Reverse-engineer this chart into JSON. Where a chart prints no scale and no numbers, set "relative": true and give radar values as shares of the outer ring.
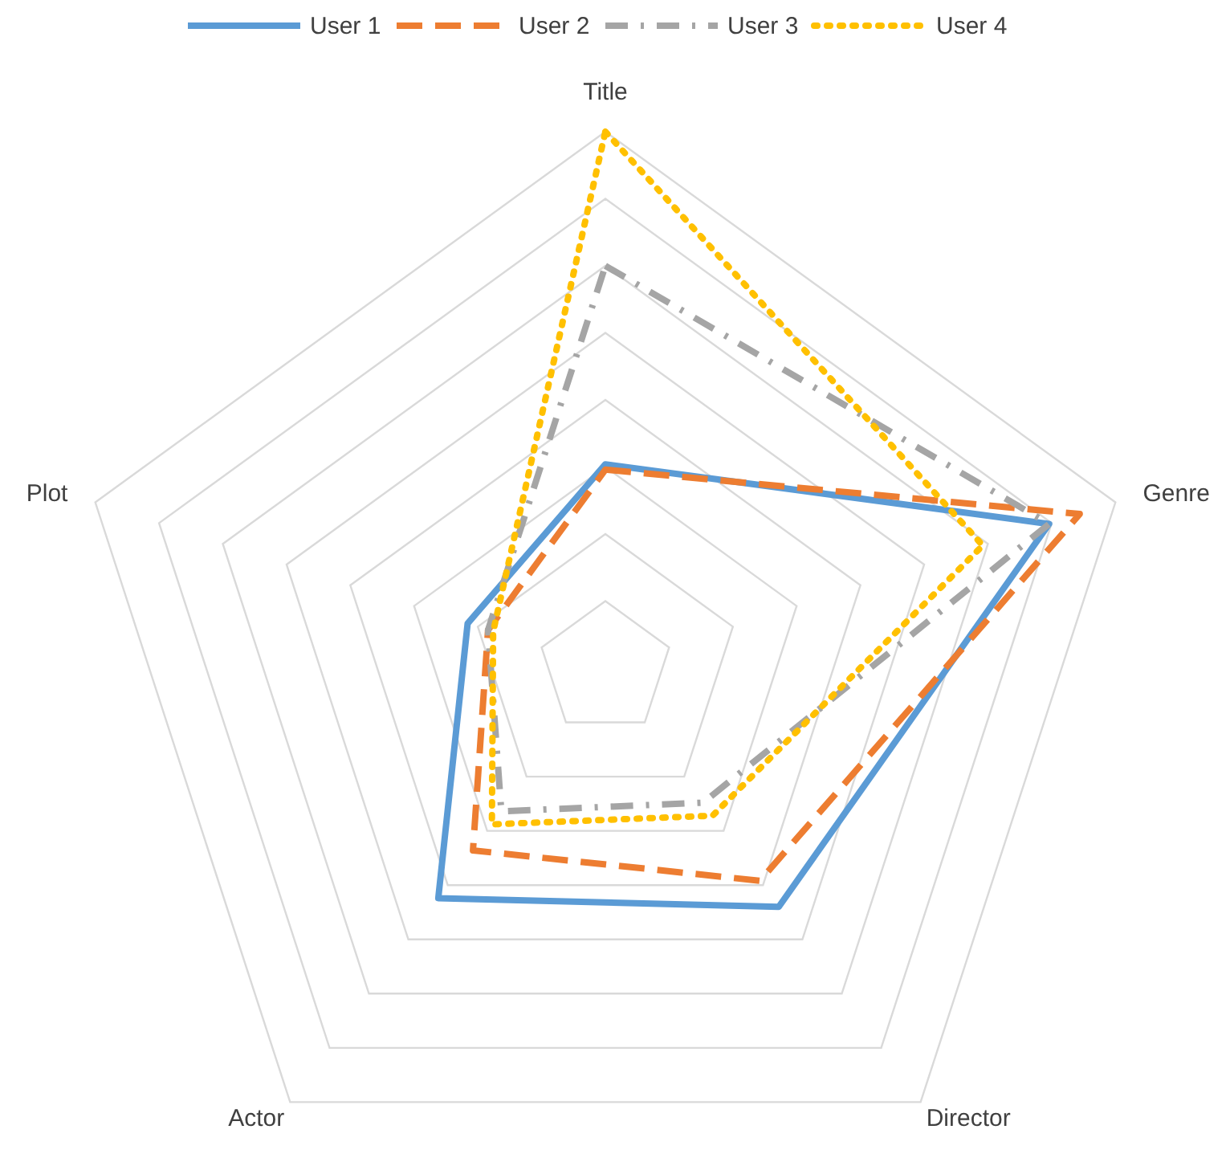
{
  "chart_data": {
    "type": "radar",
    "relative": true,
    "categories": [
      "Title",
      "Genre",
      "Director",
      "Actor",
      "Plot"
    ],
    "series": [
      {
        "name": "User 1",
        "color": "#5b9bd5",
        "line_style": "solid",
        "values": [
          0.38,
          0.87,
          0.55,
          0.53,
          0.27
        ]
      },
      {
        "name": "User 2",
        "color": "#ed7d31",
        "line_style": "dashed",
        "values": [
          0.37,
          0.93,
          0.49,
          0.42,
          0.23
        ]
      },
      {
        "name": "User 3",
        "color": "#a5a5a5",
        "line_style": "dashdot",
        "values": [
          0.75,
          0.87,
          0.31,
          0.33,
          0.23
        ]
      },
      {
        "name": "User 4",
        "color": "#ffc000",
        "line_style": "dotted",
        "values": [
          1.0,
          0.74,
          0.34,
          0.36,
          0.22
        ]
      }
    ],
    "grid": true,
    "legend": "top",
    "marker": "none"
  }
}
